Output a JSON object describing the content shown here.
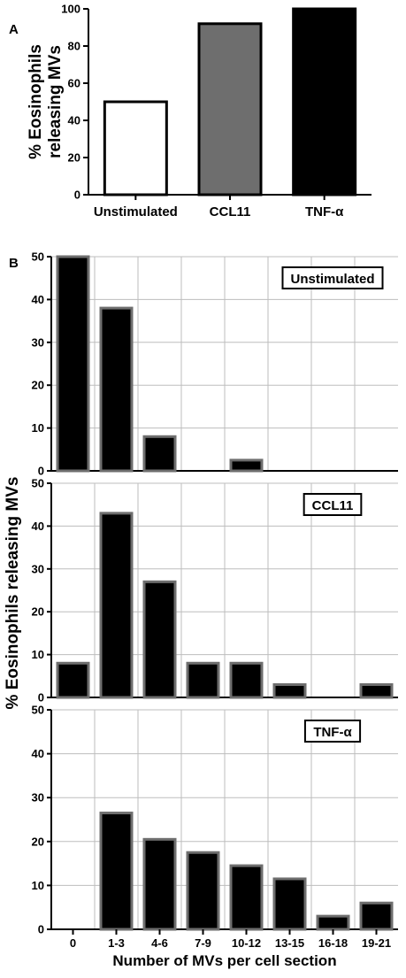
{
  "chart_data": [
    {
      "panel": "A",
      "type": "bar",
      "categories": [
        "Unstimulated",
        "CCL11",
        "TNF-α"
      ],
      "values": [
        50,
        92,
        100
      ],
      "bar_colors": [
        "#ffffff",
        "#6e6e6e",
        "#000000"
      ],
      "ylabel_line1": "% Eosinophils",
      "ylabel_line2": "releasing MVs",
      "ylim": [
        0,
        100
      ],
      "yticks": [
        0,
        20,
        40,
        60,
        80,
        100
      ],
      "grid": false
    },
    {
      "panel": "B",
      "type": "bar",
      "ylabel": "% Eosinophils releasing MVs",
      "xlabel": "Number of MVs per cell section",
      "categories": [
        "0",
        "1-3",
        "4-6",
        "7-9",
        "10-12",
        "13-15",
        "16-18",
        "19-21"
      ],
      "ylim": [
        0,
        50
      ],
      "yticks": [
        0,
        10,
        20,
        30,
        40,
        50
      ],
      "grid": true,
      "bar_fill": "#000000",
      "bar_edge": "#6e6e6e",
      "legend_placement": "top-right",
      "series": [
        {
          "name": "Unstimulated",
          "values": [
            50,
            38,
            8,
            0,
            2.5,
            0,
            0,
            0
          ]
        },
        {
          "name": "CCL11",
          "values": [
            8,
            43,
            27,
            8,
            8,
            3,
            0,
            3
          ]
        },
        {
          "name": "TNF-α",
          "values": [
            0,
            26.5,
            20.5,
            17.5,
            14.5,
            11.5,
            3,
            6
          ]
        }
      ]
    }
  ]
}
